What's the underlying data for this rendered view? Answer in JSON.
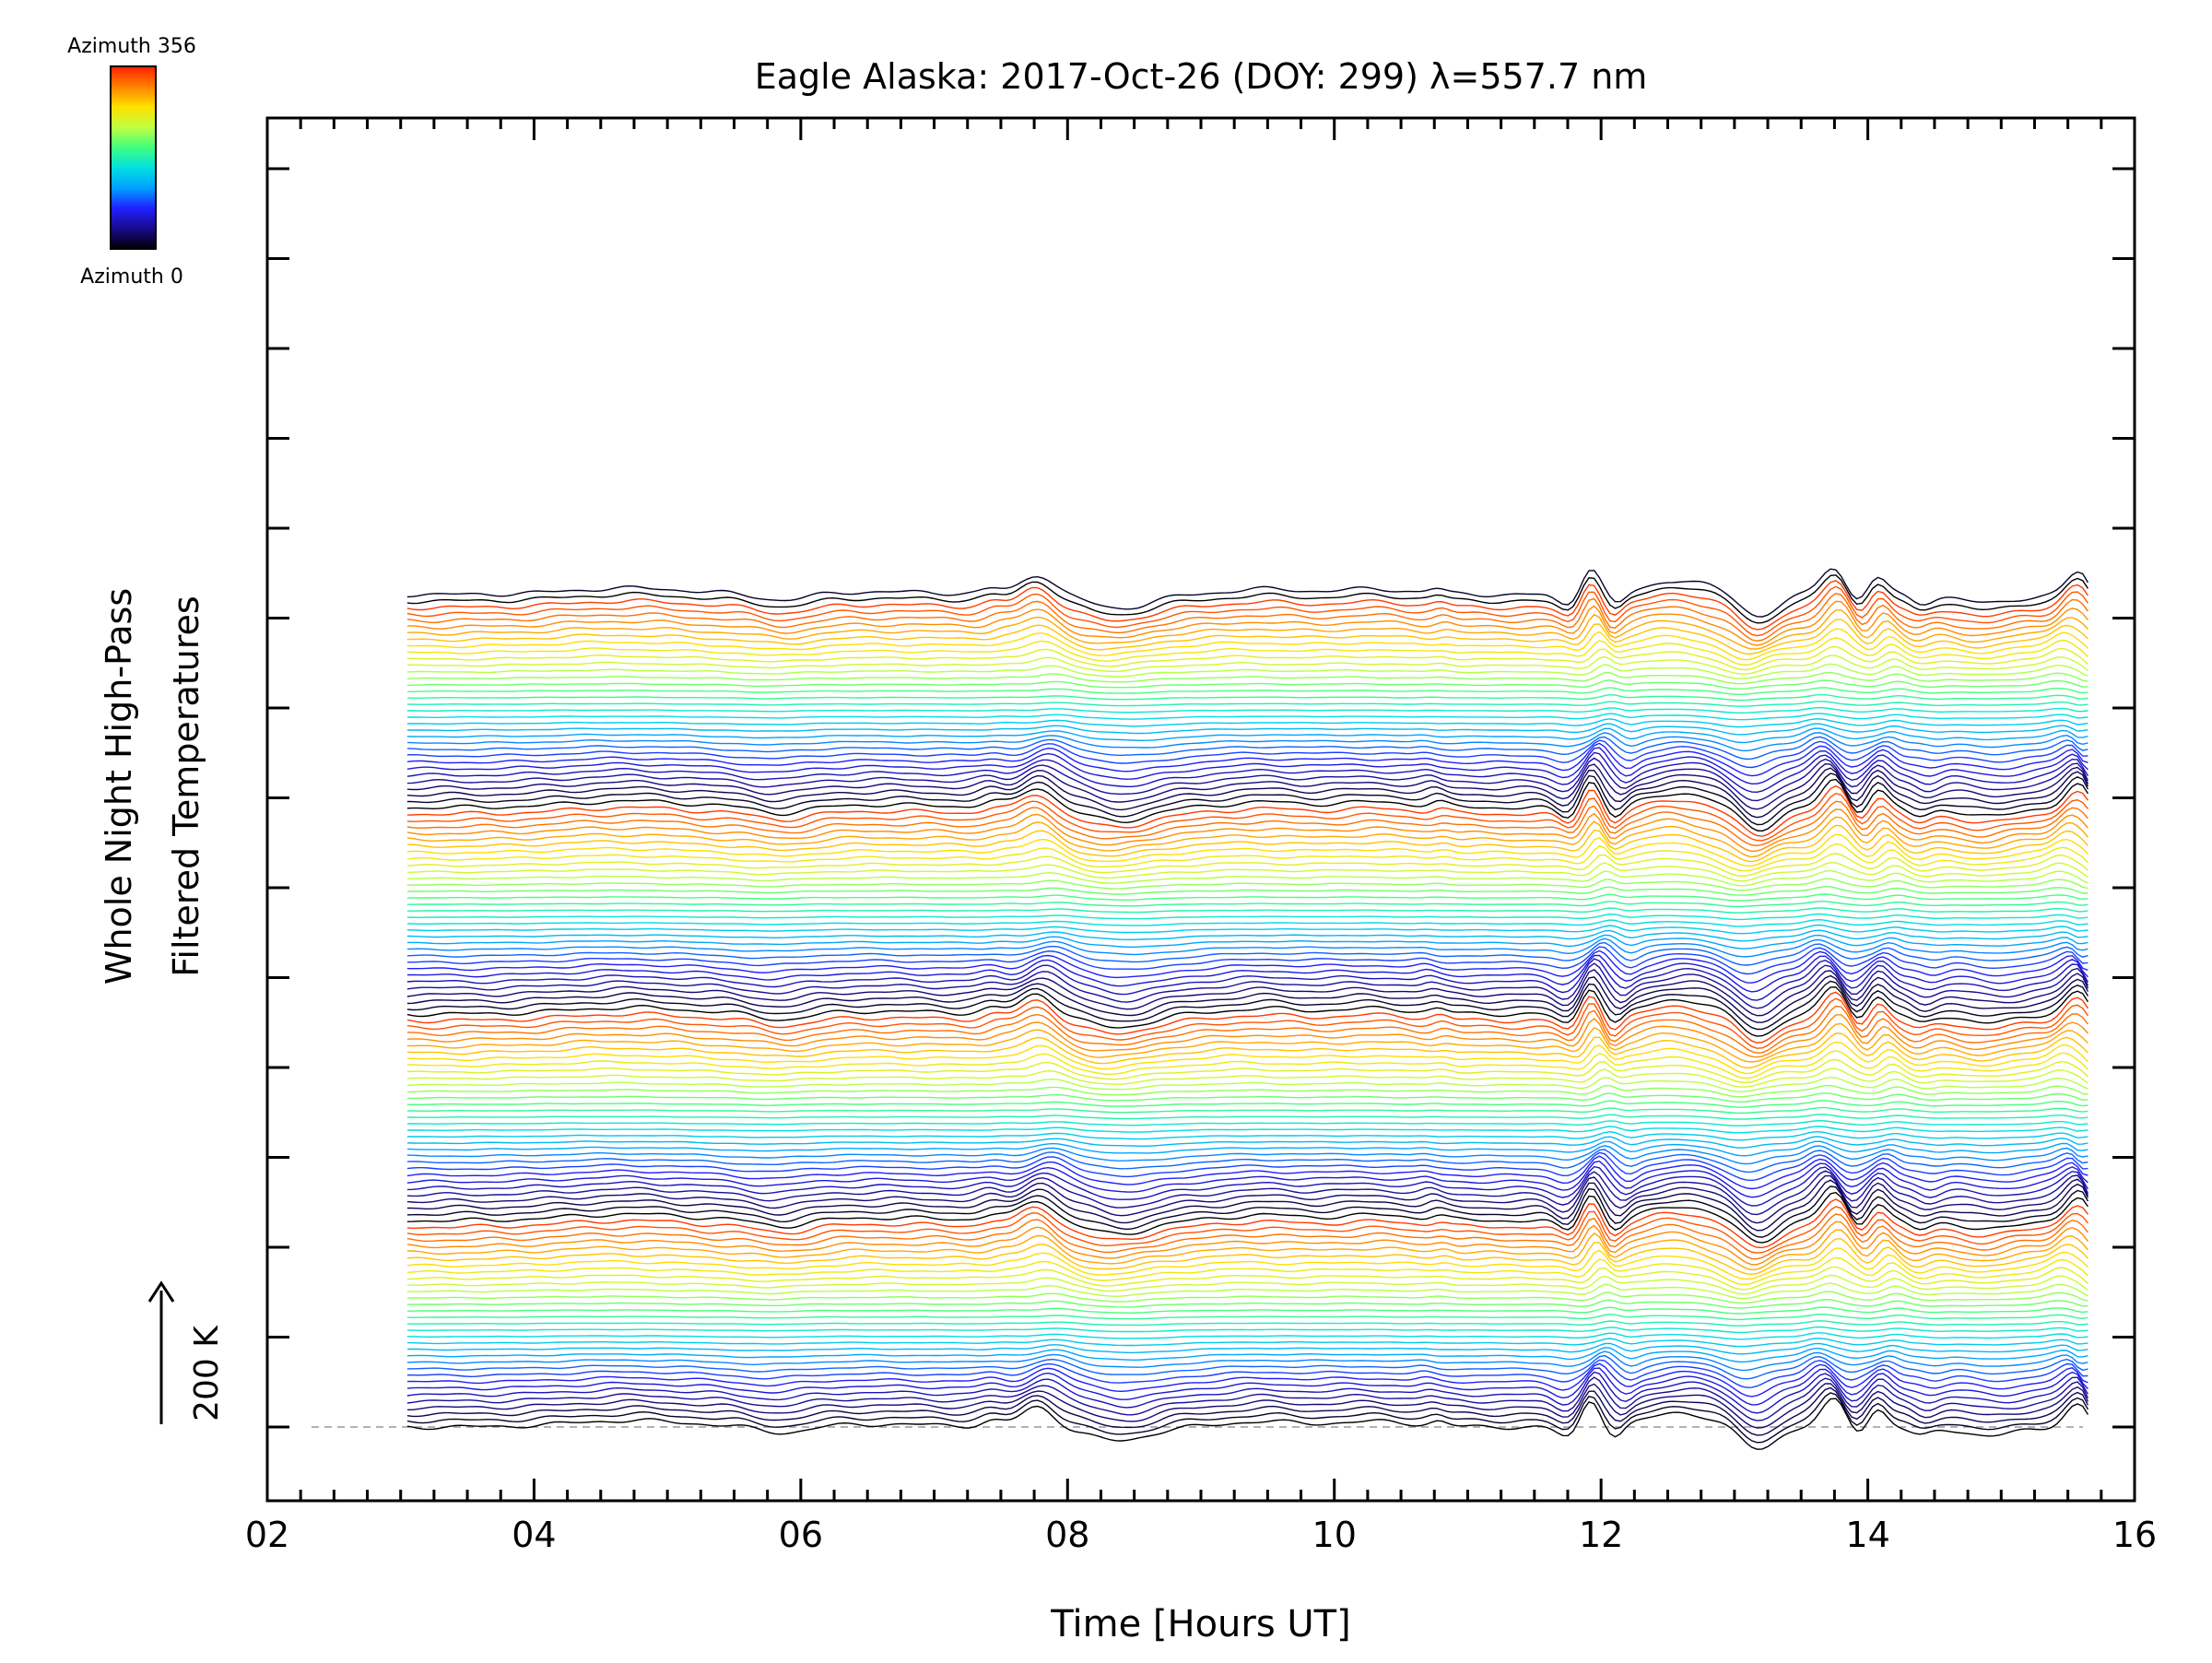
{
  "chart_data": {
    "type": "line",
    "title": "Eagle Alaska: 2017-Oct-26 (DOY: 299) λ=557.7 nm",
    "xlabel": "Time [Hours UT]",
    "ylabel_line1": "Whole Night High-Pass",
    "ylabel_line2": "Filtered Temperatures",
    "xlim": [
      2.0,
      16.0
    ],
    "x_tick_labels": [
      "02",
      "04",
      "06",
      "08",
      "10",
      "12",
      "14",
      "16"
    ],
    "x_tick_values": [
      2,
      4,
      6,
      8,
      10,
      12,
      14,
      16
    ],
    "scale_bar_label": "200 K",
    "scale_bar_kelvin": 200,
    "colorbar_top_label": "Azimuth 356",
    "colorbar_bottom_label": "Azimuth 0",
    "azimuth_range": [
      0,
      356
    ],
    "trace_count": 130,
    "trace_spacing_kelvin": 40,
    "time_start": 3.05,
    "time_end": 15.65,
    "baseline_dashed": true,
    "colormap": [
      "#000000",
      "#1a0a8c",
      "#2020ff",
      "#00a0ff",
      "#00e0e0",
      "#40ff80",
      "#c0ff40",
      "#ffe000",
      "#ff8000",
      "#ff2000"
    ],
    "features": [
      {
        "t": 3.1,
        "amp": 0.0,
        "w": 0.3
      },
      {
        "t": 4.65,
        "amp": 0.35,
        "w": 0.45
      },
      {
        "t": 5.8,
        "amp": -0.35,
        "w": 0.18
      },
      {
        "t": 6.6,
        "amp": 0.15,
        "w": 0.45
      },
      {
        "t": 7.5,
        "amp": 0.3,
        "w": 0.08
      },
      {
        "t": 7.85,
        "amp": 1.1,
        "w": 0.12
      },
      {
        "t": 8.4,
        "amp": -0.75,
        "w": 0.22
      },
      {
        "t": 9.4,
        "amp": 0.3,
        "w": 0.25
      },
      {
        "t": 10.2,
        "amp": 0.3,
        "w": 0.3
      },
      {
        "t": 10.75,
        "amp": 0.25,
        "w": 0.06
      },
      {
        "t": 11.8,
        "amp": -0.6,
        "w": 0.08
      },
      {
        "t": 12.0,
        "amp": 1.5,
        "w": 0.07
      },
      {
        "t": 12.15,
        "amp": -0.6,
        "w": 0.06
      },
      {
        "t": 12.55,
        "amp": 0.8,
        "w": 0.22
      },
      {
        "t": 13.1,
        "amp": -1.2,
        "w": 0.13
      },
      {
        "t": 13.7,
        "amp": 1.5,
        "w": 0.09
      },
      {
        "t": 13.95,
        "amp": -0.5,
        "w": 0.07
      },
      {
        "t": 14.15,
        "amp": 1.0,
        "w": 0.07
      },
      {
        "t": 14.45,
        "amp": -0.5,
        "w": 0.08
      },
      {
        "t": 14.9,
        "amp": -0.5,
        "w": 0.18
      },
      {
        "t": 15.5,
        "amp": 1.2,
        "w": 0.09
      },
      {
        "t": 15.65,
        "amp": -0.8,
        "w": 0.04
      }
    ]
  }
}
